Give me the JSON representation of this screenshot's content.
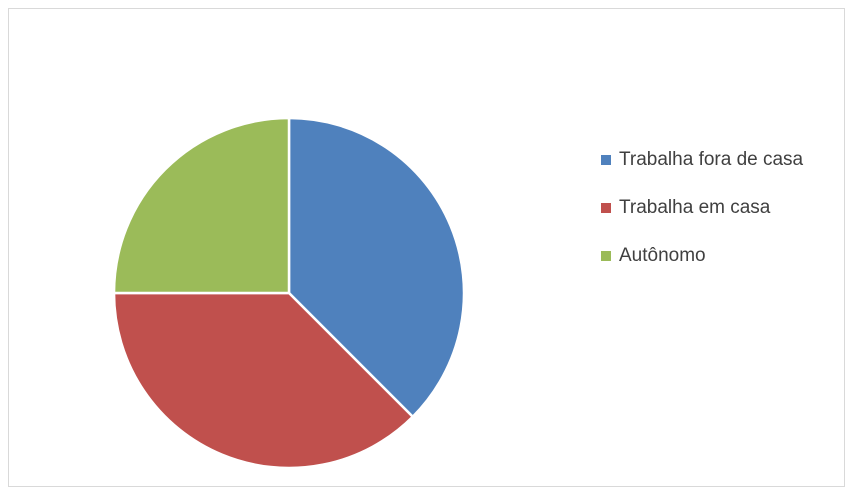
{
  "chart_data": {
    "type": "pie",
    "categories": [
      "Trabalha fora de casa",
      "Trabalha em casa",
      "Autônomo"
    ],
    "values": [
      37.5,
      37.5,
      25
    ],
    "colors": [
      "#4f81bd",
      "#c0504d",
      "#9bbb59"
    ],
    "legend": "right"
  }
}
